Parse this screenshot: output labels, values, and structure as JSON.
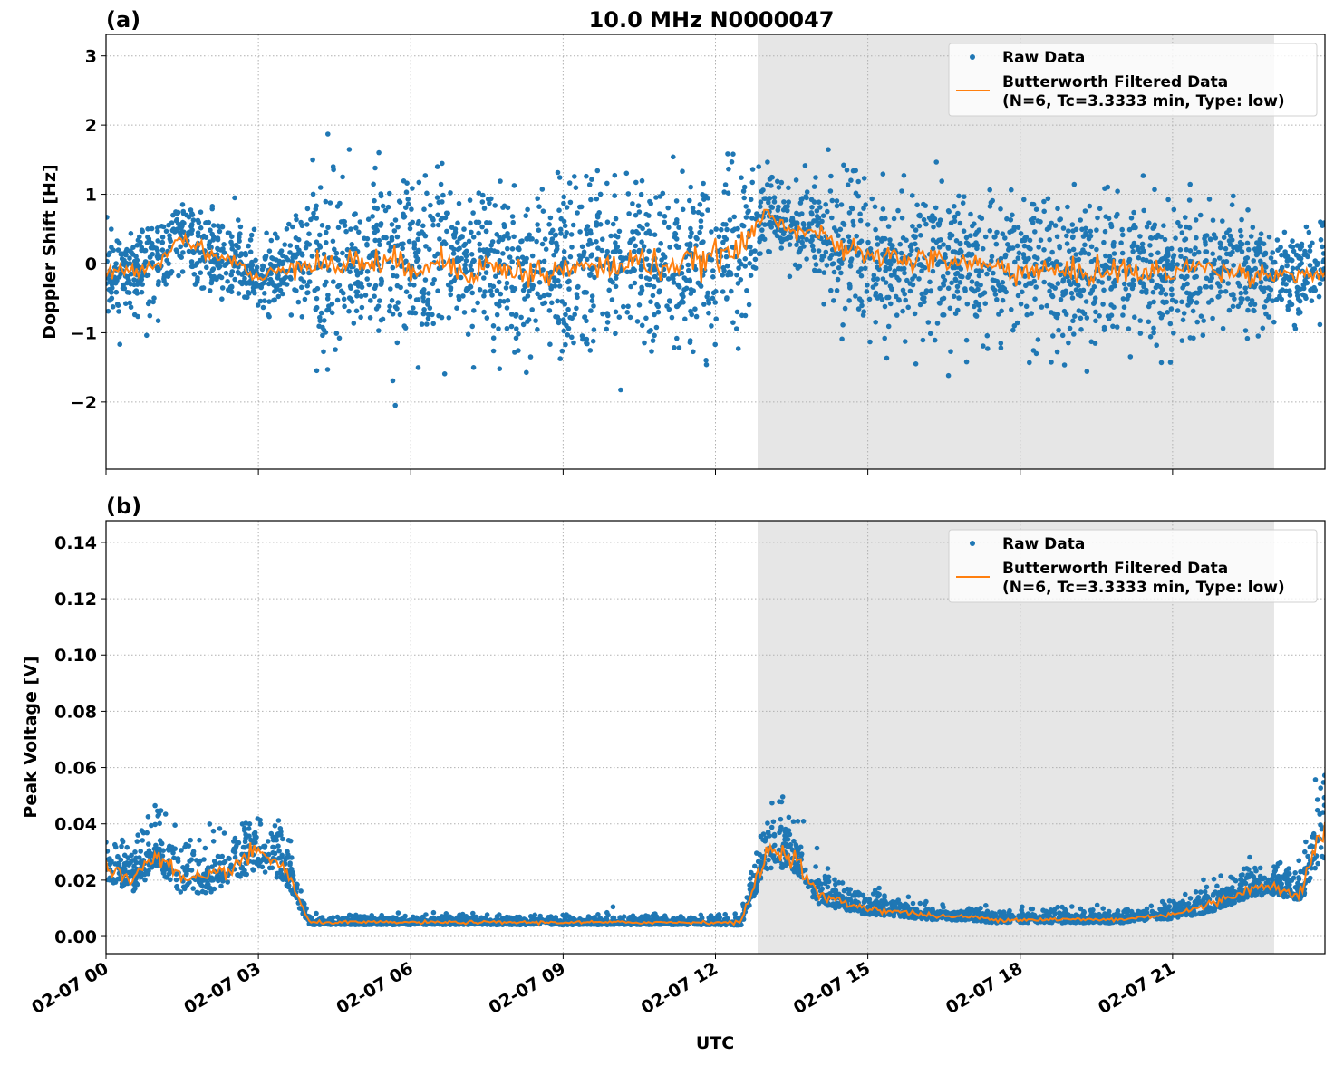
{
  "title": "10.0 MHz N0000047",
  "colors": {
    "raw": "#1f77b4",
    "filtered": "#ff7f0e",
    "shade": "#e6e6e6"
  },
  "legend": {
    "raw": "Raw Data",
    "filtered_line1": "Butterworth Filtered Data",
    "filtered_line2": "(N=6, Tc=3.3333 min, Type: low)",
    "placement": "upper right"
  },
  "xaxis": {
    "label": "UTC",
    "ticks_hours": [
      0,
      3,
      6,
      9,
      12,
      15,
      18,
      21
    ],
    "tick_labels": [
      "02-07 00",
      "02-07 03",
      "02-07 06",
      "02-07 09",
      "02-07 12",
      "02-07 15",
      "02-07 18",
      "02-07 21"
    ],
    "range_hours": [
      0,
      24
    ]
  },
  "chart_data": [
    {
      "type": "scatter+line",
      "panel_label": "(a)",
      "ylabel": "Doppler Shift [Hz]",
      "ylim": [
        -2.97,
        3.31
      ],
      "yticks": [
        -2,
        -1,
        0,
        1,
        2,
        3
      ],
      "ytick_labels": [
        "−2",
        "−1",
        "0",
        "1",
        "2",
        "3"
      ],
      "grid": true,
      "shaded_interval_hours": [
        12.83,
        23.0
      ],
      "x_hours_step": 0.5,
      "filtered": [
        -0.15,
        -0.1,
        0.0,
        0.4,
        0.15,
        0.05,
        -0.25,
        -0.05,
        0.05,
        -0.05,
        0.05,
        0.0,
        -0.05,
        0.05,
        -0.1,
        -0.05,
        -0.1,
        -0.15,
        -0.1,
        -0.05,
        -0.05,
        0.05,
        -0.05,
        0.0,
        0.1,
        0.2,
        0.75,
        0.5,
        0.45,
        0.2,
        0.1,
        0.1,
        0.05,
        0.05,
        0.0,
        -0.05,
        -0.1,
        -0.1,
        -0.15,
        -0.1,
        -0.1,
        -0.15,
        -0.1,
        -0.05,
        -0.1,
        -0.15,
        -0.15,
        -0.15,
        -0.15
      ],
      "raw_spread": [
        0.3,
        0.3,
        0.3,
        0.3,
        0.3,
        0.3,
        0.3,
        0.3,
        0.6,
        0.6,
        0.6,
        0.6,
        0.6,
        0.6,
        0.6,
        0.6,
        0.6,
        0.6,
        0.6,
        0.6,
        0.6,
        0.6,
        0.6,
        0.6,
        0.6,
        0.55,
        0.3,
        0.3,
        0.3,
        0.45,
        0.5,
        0.5,
        0.5,
        0.5,
        0.5,
        0.5,
        0.55,
        0.55,
        0.55,
        0.55,
        0.55,
        0.5,
        0.5,
        0.45,
        0.4,
        0.35,
        0.35,
        0.35,
        0.35
      ]
    },
    {
      "type": "scatter+line",
      "panel_label": "(b)",
      "ylabel": "Peak Voltage [V]",
      "ylim": [
        -0.0061,
        0.1477
      ],
      "yticks": [
        0,
        0.02,
        0.04,
        0.06,
        0.08,
        0.1,
        0.12,
        0.14
      ],
      "ytick_labels": [
        "0.00",
        "0.02",
        "0.04",
        "0.06",
        "0.08",
        "0.10",
        "0.12",
        "0.14"
      ],
      "grid": true,
      "shaded_interval_hours": [
        12.83,
        23.0
      ],
      "x_hours_step": 0.5,
      "filtered": [
        0.025,
        0.02,
        0.03,
        0.02,
        0.02,
        0.025,
        0.03,
        0.025,
        0.005,
        0.005,
        0.005,
        0.005,
        0.005,
        0.005,
        0.005,
        0.005,
        0.005,
        0.005,
        0.005,
        0.005,
        0.005,
        0.005,
        0.005,
        0.005,
        0.005,
        0.005,
        0.03,
        0.03,
        0.015,
        0.012,
        0.01,
        0.009,
        0.008,
        0.007,
        0.007,
        0.006,
        0.006,
        0.006,
        0.006,
        0.006,
        0.006,
        0.007,
        0.008,
        0.01,
        0.013,
        0.017,
        0.018,
        0.015,
        0.04
      ],
      "raw_spread": [
        0.008,
        0.008,
        0.01,
        0.008,
        0.008,
        0.009,
        0.01,
        0.009,
        0.0015,
        0.0015,
        0.0015,
        0.0015,
        0.0015,
        0.0015,
        0.0015,
        0.0015,
        0.0015,
        0.0015,
        0.0015,
        0.0015,
        0.0015,
        0.0015,
        0.0015,
        0.0015,
        0.0015,
        0.002,
        0.01,
        0.01,
        0.006,
        0.004,
        0.004,
        0.003,
        0.003,
        0.002,
        0.002,
        0.002,
        0.002,
        0.002,
        0.002,
        0.002,
        0.002,
        0.002,
        0.003,
        0.004,
        0.005,
        0.005,
        0.005,
        0.005,
        0.02
      ]
    }
  ]
}
